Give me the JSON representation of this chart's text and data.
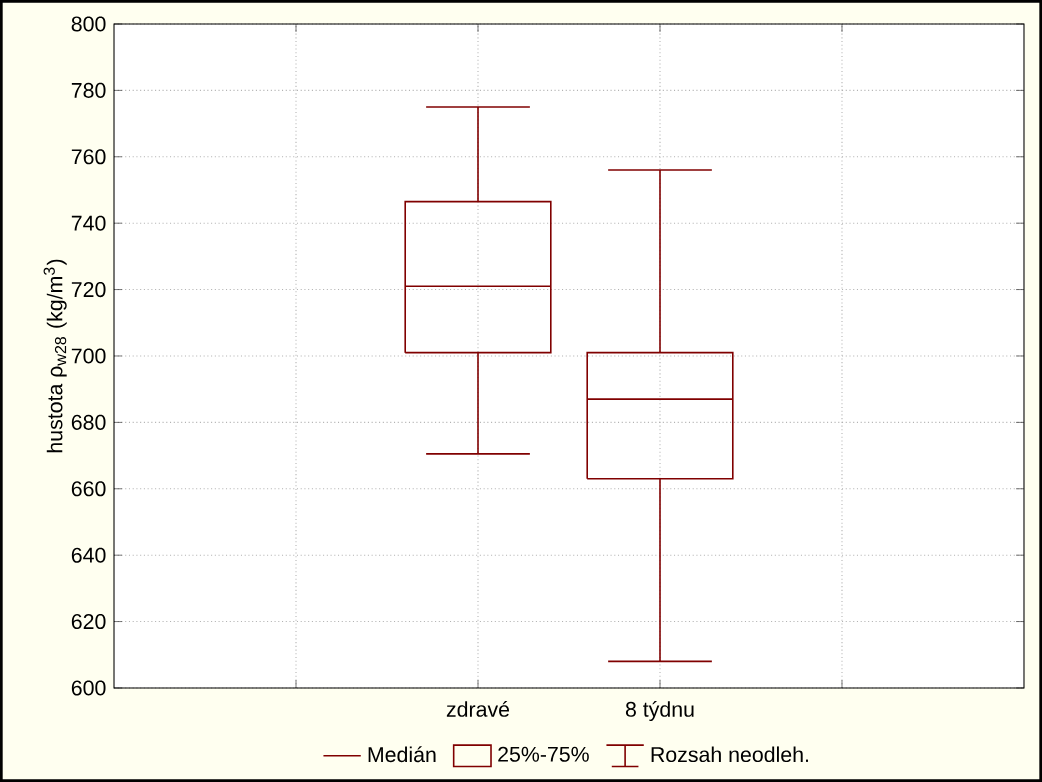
{
  "chart_data": {
    "type": "box",
    "ylabel": "hustota ρ$_{w28}$ (kg/m$^{3}$)",
    "categories": [
      "zdravé",
      "8 týdnu"
    ],
    "boxes": [
      {
        "low": 670.5,
        "q1": 701,
        "median": 721,
        "q3": 746.5,
        "high": 775
      },
      {
        "low": 608,
        "q1": 663,
        "median": 687,
        "q3": 701,
        "high": 756
      }
    ],
    "color": "#800000",
    "ylim": [
      600,
      800
    ],
    "yticks": [
      600,
      620,
      640,
      660,
      680,
      700,
      720,
      740,
      760,
      780,
      800
    ],
    "grid": true,
    "annotations": [
      "Medián",
      "25%-75%",
      "Rozsah neodleh."
    ]
  }
}
